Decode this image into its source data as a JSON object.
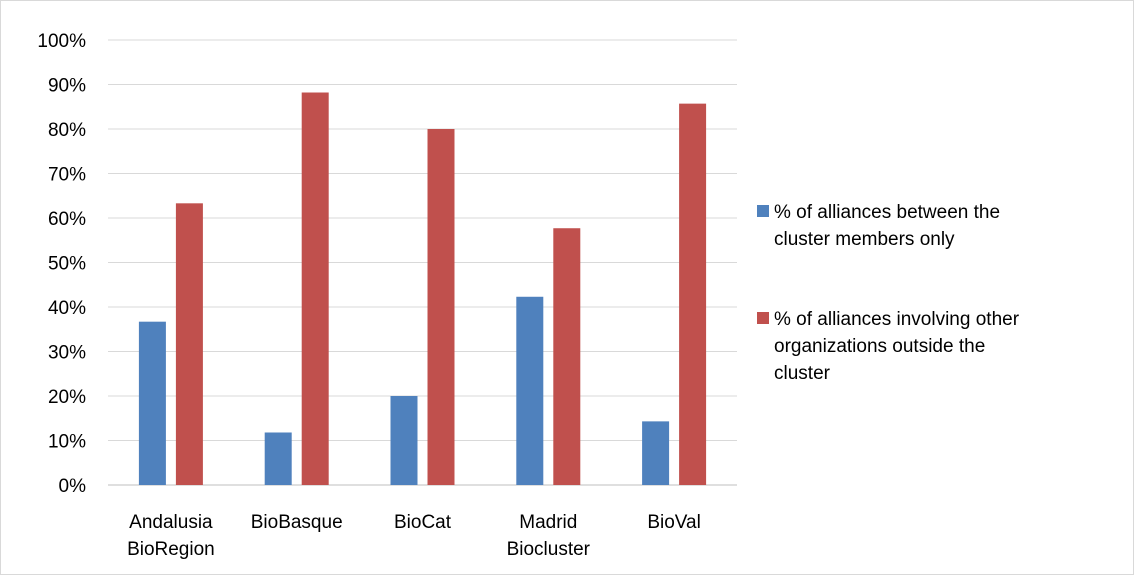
{
  "chart_data": {
    "type": "bar",
    "title": "",
    "xlabel": "",
    "ylabel": "",
    "categories": [
      [
        "Andalusia",
        "BioRegion"
      ],
      [
        "BioBasque"
      ],
      [
        "BioCat"
      ],
      [
        "Madrid",
        "Biocluster"
      ],
      [
        "BioVal"
      ]
    ],
    "series": [
      {
        "name": [
          "% of alliances between the",
          "cluster members only"
        ],
        "color": "#4f81bd",
        "values": [
          36.7,
          11.8,
          20.0,
          42.3,
          14.3
        ]
      },
      {
        "name": [
          "% of alliances involving other",
          "organizations outside the",
          "cluster"
        ],
        "color": "#c0504d",
        "values": [
          63.3,
          88.2,
          80.0,
          57.7,
          85.7
        ]
      }
    ],
    "ylim": [
      0,
      100
    ],
    "yticks": [
      "0%",
      "10%",
      "20%",
      "30%",
      "40%",
      "50%",
      "60%",
      "70%",
      "80%",
      "90%",
      "100%"
    ],
    "grid": true,
    "legend_position": "right"
  }
}
